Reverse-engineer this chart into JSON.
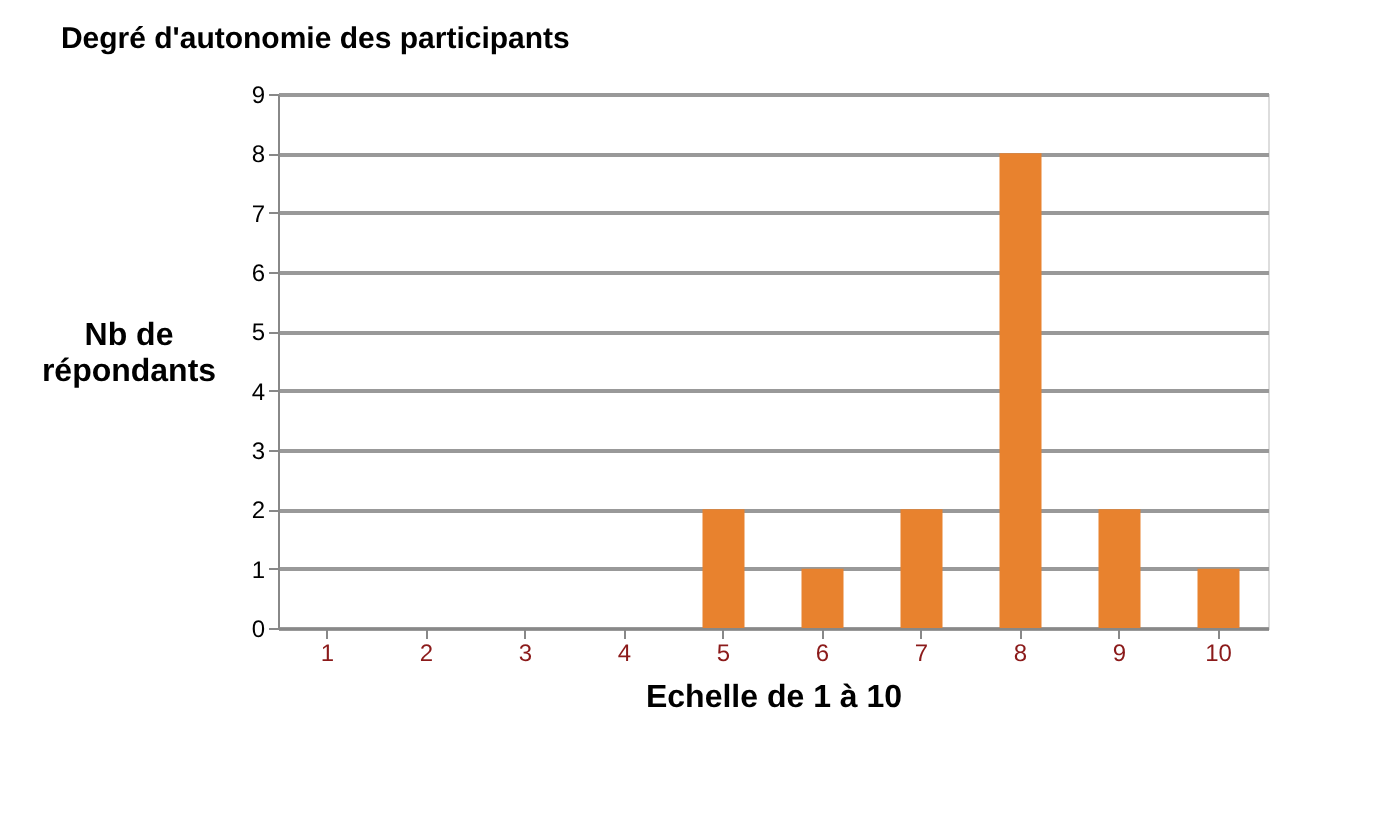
{
  "chart_data": {
    "type": "bar",
    "title": "Degré d'autonomie des participants",
    "xlabel": "Echelle de 1 à 10",
    "ylabel": "Nb de\nrépondants",
    "categories": [
      "1",
      "2",
      "3",
      "4",
      "5",
      "6",
      "7",
      "8",
      "9",
      "10"
    ],
    "values": [
      0,
      0,
      0,
      0,
      2,
      1,
      2,
      8,
      2,
      1
    ],
    "color": "#e8822e",
    "ylim": [
      0,
      9
    ],
    "yticks": [
      0,
      1,
      2,
      3,
      4,
      5,
      6,
      7,
      8,
      9
    ],
    "grid": "y"
  }
}
